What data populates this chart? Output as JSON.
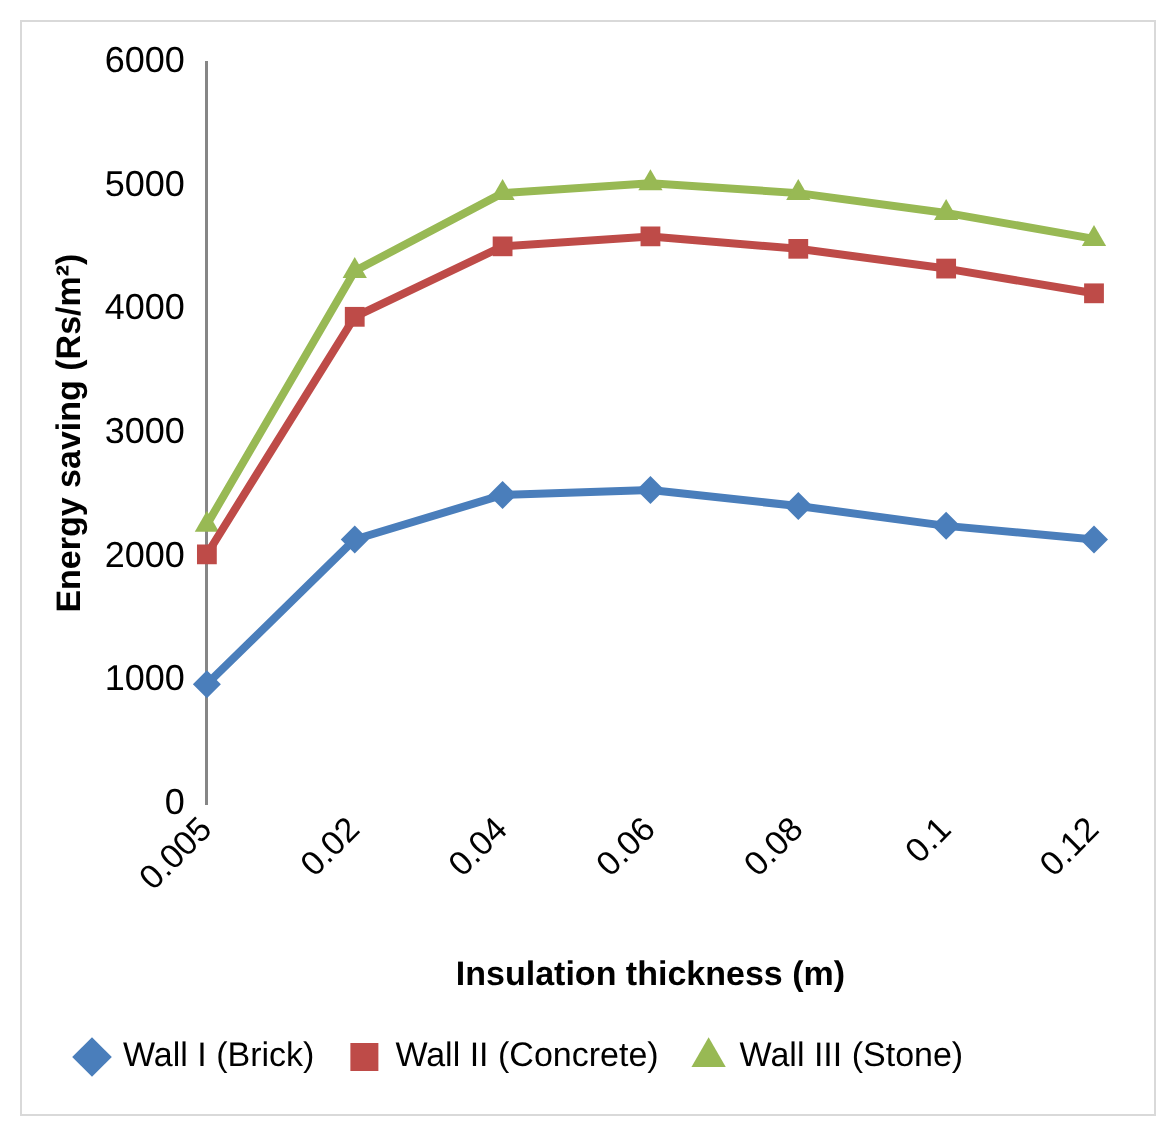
{
  "chart_data": {
    "type": "line",
    "xlabel": "Insulation thickness (m)",
    "ylabel": "Energy saving (Rs/m²)",
    "categories": [
      "0.005",
      "0.02",
      "0.04",
      "0.06",
      "0.08",
      "0.1",
      "0.12"
    ],
    "series": [
      {
        "name": "Wall I (Brick)",
        "color": "#4a7ebb",
        "marker": "diamond",
        "values": [
          970,
          2140,
          2500,
          2540,
          2410,
          2250,
          2140
        ]
      },
      {
        "name": "Wall II (Concrete)",
        "color": "#be4b48",
        "marker": "square",
        "values": [
          2020,
          3940,
          4510,
          4590,
          4490,
          4330,
          4130
        ]
      },
      {
        "name": "Wall III (Stone)",
        "color": "#98b954",
        "marker": "triangle",
        "values": [
          2260,
          4310,
          4940,
          5020,
          4940,
          4780,
          4570
        ]
      }
    ],
    "ylim": [
      0,
      6000
    ],
    "yticks": [
      0,
      1000,
      2000,
      3000,
      4000,
      5000,
      6000
    ],
    "grid": false,
    "legend": "bottom",
    "line_style": "solid"
  }
}
